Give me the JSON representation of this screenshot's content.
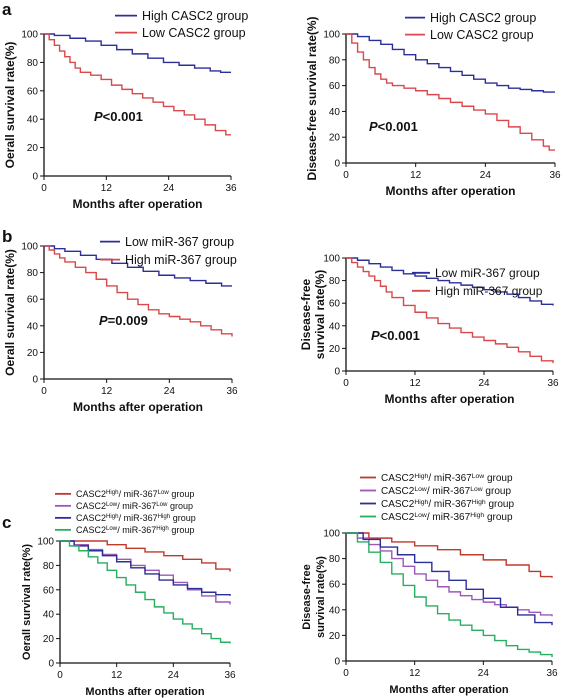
{
  "panels": [
    {
      "letter": "a",
      "show": true
    },
    {
      "letter": "",
      "show": false
    },
    {
      "letter": "b",
      "show": true
    },
    {
      "letter": "",
      "show": false
    },
    {
      "letter": "c",
      "show": true
    },
    {
      "letter": "",
      "show": false
    }
  ],
  "chart_data": [
    {
      "type": "line",
      "step": true,
      "title": "",
      "xlabel": "Months after operation",
      "ylabel": "Oerall survival rate(%)",
      "xlim": [
        0,
        36
      ],
      "ylim": [
        0,
        100
      ],
      "xticks": [
        0,
        12,
        24,
        36
      ],
      "yticks": [
        0,
        20,
        40,
        60,
        80,
        100
      ],
      "pvalue": {
        "label": "P",
        "text": "<0.001"
      },
      "legend": "top",
      "series": [
        {
          "name": "High CASC2 group",
          "color": "#2b2f9a",
          "x": [
            0,
            2,
            5,
            8,
            11,
            14,
            17,
            20,
            23,
            26,
            29,
            32,
            34,
            36
          ],
          "y": [
            100,
            99,
            97,
            95,
            92,
            89,
            86,
            83,
            80,
            78,
            76,
            74,
            73,
            73
          ]
        },
        {
          "name": "Low  CASC2 group",
          "color": "#d9484b",
          "x": [
            0,
            1,
            2,
            3,
            4,
            5,
            6,
            7,
            9,
            11,
            13,
            15,
            17,
            19,
            21,
            23,
            25,
            27,
            29,
            31,
            33,
            35,
            36
          ],
          "y": [
            100,
            96,
            92,
            88,
            84,
            80,
            76,
            73,
            71,
            68,
            64,
            61,
            58,
            55,
            52,
            49,
            46,
            43,
            40,
            36,
            32,
            29,
            29
          ]
        }
      ]
    },
    {
      "type": "line",
      "step": true,
      "title": "",
      "xlabel": "Months after operation",
      "ylabel": "Disease-free survival rate(%)",
      "xlim": [
        0,
        36
      ],
      "ylim": [
        0,
        100
      ],
      "xticks": [
        0,
        12,
        24,
        36
      ],
      "yticks": [
        0,
        20,
        40,
        60,
        80,
        100
      ],
      "pvalue": {
        "label": "P",
        "text": "<0.001"
      },
      "legend": "top",
      "series": [
        {
          "name": "High CASC2 group",
          "color": "#2b2f9a",
          "x": [
            0,
            2,
            4,
            6,
            8,
            10,
            12,
            14,
            16,
            18,
            20,
            22,
            24,
            26,
            28,
            30,
            32,
            34,
            36
          ],
          "y": [
            100,
            98,
            95,
            92,
            88,
            84,
            80,
            77,
            74,
            71,
            68,
            65,
            62,
            60,
            58,
            57,
            56,
            55,
            55
          ]
        },
        {
          "name": "Low  CASC2 group",
          "color": "#d9484b",
          "x": [
            0,
            1,
            2,
            3,
            4,
            5,
            6,
            7,
            8,
            10,
            12,
            14,
            16,
            18,
            20,
            22,
            24,
            26,
            28,
            30,
            32,
            34,
            35,
            36
          ],
          "y": [
            100,
            93,
            86,
            80,
            74,
            69,
            65,
            62,
            60,
            58,
            56,
            53,
            50,
            47,
            44,
            41,
            38,
            33,
            28,
            23,
            18,
            13,
            10,
            10
          ]
        }
      ]
    },
    {
      "type": "line",
      "step": true,
      "title": "",
      "xlabel": "Months after operation",
      "ylabel": "Oerall survival rate(%)",
      "xlim": [
        0,
        36
      ],
      "ylim": [
        0,
        100
      ],
      "xticks": [
        0,
        12,
        24,
        36
      ],
      "yticks": [
        0,
        20,
        40,
        60,
        80,
        100
      ],
      "pvalue": {
        "label": "P",
        "text": "=0.009"
      },
      "legend": "top",
      "series": [
        {
          "name": "Low miR-367  group",
          "color": "#2b2f9a",
          "x": [
            0,
            2,
            4,
            7,
            10,
            13,
            16,
            19,
            22,
            25,
            28,
            31,
            34,
            36
          ],
          "y": [
            100,
            98,
            96,
            93,
            90,
            87,
            84,
            81,
            78,
            76,
            74,
            72,
            70,
            70
          ]
        },
        {
          "name": "High miR-367 group",
          "color": "#d9484b",
          "x": [
            0,
            1,
            2,
            3,
            4,
            6,
            8,
            10,
            12,
            14,
            16,
            18,
            20,
            22,
            24,
            26,
            28,
            30,
            32,
            34,
            36
          ],
          "y": [
            100,
            97,
            94,
            91,
            88,
            84,
            80,
            75,
            70,
            65,
            60,
            56,
            52,
            49,
            47,
            45,
            43,
            40,
            37,
            34,
            32
          ]
        }
      ]
    },
    {
      "type": "line",
      "step": true,
      "title": "",
      "xlabel": "Months after operation",
      "ylabel": "Disease-free\nsurvival rate(%)",
      "xlim": [
        0,
        36
      ],
      "ylim": [
        0,
        100
      ],
      "xticks": [
        0,
        12,
        24,
        36
      ],
      "yticks": [
        0,
        20,
        40,
        60,
        80,
        100
      ],
      "pvalue": {
        "label": "P",
        "text": "<0.001"
      },
      "legend": "top-right",
      "series": [
        {
          "name": "Low miR-367 group",
          "color": "#2b2f9a",
          "x": [
            0,
            2,
            4,
            6,
            8,
            10,
            12,
            14,
            16,
            18,
            20,
            22,
            24,
            26,
            28,
            30,
            32,
            34,
            36
          ],
          "y": [
            100,
            98,
            95,
            92,
            89,
            86,
            84,
            82,
            80,
            78,
            76,
            74,
            72,
            70,
            68,
            65,
            62,
            59,
            58
          ]
        },
        {
          "name": "High miR-367  group",
          "color": "#d9484b",
          "x": [
            0,
            1,
            2,
            3,
            4,
            5,
            6,
            7,
            8,
            10,
            12,
            14,
            16,
            18,
            20,
            22,
            24,
            26,
            28,
            30,
            32,
            34,
            36
          ],
          "y": [
            100,
            96,
            92,
            88,
            84,
            80,
            75,
            70,
            65,
            58,
            52,
            47,
            42,
            38,
            34,
            30,
            27,
            24,
            21,
            17,
            13,
            9,
            7
          ]
        }
      ]
    },
    {
      "type": "line",
      "step": true,
      "title": "",
      "xlabel": "Months after operation",
      "ylabel": "Oerall survival rate(%)",
      "xlim": [
        0,
        36
      ],
      "ylim": [
        0,
        100
      ],
      "xticks": [
        0,
        12,
        24,
        36
      ],
      "yticks": [
        0,
        20,
        40,
        60,
        80,
        100
      ],
      "legend": "top-left",
      "series": [
        {
          "name_base": "CASC2",
          "name_sup1": "High",
          "name_mid": "/ miR-367",
          "name_sup2": "Low",
          "name_tail": " group",
          "color": "#c0392b",
          "x": [
            0,
            6,
            10,
            14,
            18,
            22,
            26,
            30,
            33,
            36
          ],
          "y": [
            100,
            100,
            97,
            94,
            91,
            88,
            85,
            82,
            77,
            75
          ]
        },
        {
          "name_base": "CASC2",
          "name_sup1": "Low",
          "name_mid": "/ miR-367",
          "name_sup2": "Low",
          "name_tail": " group",
          "color": "#9b59b6",
          "x": [
            0,
            3,
            6,
            9,
            12,
            15,
            18,
            21,
            24,
            27,
            30,
            33,
            36
          ],
          "y": [
            100,
            97,
            93,
            89,
            85,
            80,
            76,
            72,
            66,
            60,
            55,
            50,
            48
          ]
        },
        {
          "name_base": "CASC2",
          "name_sup1": "High",
          "name_mid": "/ miR-367",
          "name_sup2": "High",
          "name_tail": " group",
          "color": "#2b2f9a",
          "x": [
            0,
            3,
            6,
            9,
            12,
            15,
            18,
            21,
            24,
            27,
            30,
            33,
            36
          ],
          "y": [
            100,
            96,
            92,
            88,
            83,
            78,
            73,
            68,
            64,
            61,
            58,
            56,
            55
          ]
        },
        {
          "name_base": "CASC2",
          "name_sup1": "Low",
          "name_mid": "/ miR-367",
          "name_sup2": "High",
          "name_tail": " group",
          "color": "#27ae60",
          "x": [
            0,
            2,
            4,
            6,
            8,
            10,
            12,
            14,
            16,
            18,
            20,
            22,
            24,
            26,
            28,
            30,
            32,
            34,
            36
          ],
          "y": [
            100,
            96,
            92,
            87,
            82,
            76,
            70,
            64,
            58,
            52,
            46,
            41,
            36,
            32,
            28,
            24,
            20,
            17,
            16
          ]
        }
      ]
    },
    {
      "type": "line",
      "step": true,
      "title": "",
      "xlabel": "Months after operation",
      "ylabel": "Disease-free\nsurvival rate(%)",
      "xlim": [
        0,
        36
      ],
      "ylim": [
        0,
        100
      ],
      "xticks": [
        0,
        12,
        24,
        36
      ],
      "yticks": [
        0,
        20,
        40,
        60,
        80,
        100
      ],
      "legend": "top",
      "series": [
        {
          "name_base": "CASC2",
          "name_sup1": "High",
          "name_mid": "/ miR-367",
          "name_sup2": "Low",
          "name_tail": " group",
          "color": "#c0392b",
          "x": [
            0,
            4,
            8,
            12,
            16,
            20,
            24,
            28,
            32,
            34,
            36
          ],
          "y": [
            100,
            96,
            93,
            90,
            87,
            83,
            79,
            75,
            70,
            66,
            65
          ]
        },
        {
          "name_base": "CASC2",
          "name_sup1": "Low",
          "name_mid": "/ miR-367",
          "name_sup2": "Low",
          "name_tail": " group",
          "color": "#9b59b6",
          "x": [
            0,
            2,
            4,
            6,
            8,
            10,
            12,
            14,
            16,
            18,
            20,
            22,
            24,
            26,
            28,
            30,
            32,
            34,
            36
          ],
          "y": [
            100,
            96,
            91,
            86,
            80,
            74,
            68,
            63,
            58,
            54,
            51,
            48,
            46,
            44,
            42,
            40,
            38,
            36,
            35
          ]
        },
        {
          "name_base": "CASC2",
          "name_sup1": "High",
          "name_mid": "/ miR-367",
          "name_sup2": "High",
          "name_tail": " group",
          "color": "#2b2f9a",
          "x": [
            0,
            3,
            6,
            9,
            12,
            15,
            18,
            21,
            24,
            27,
            30,
            33,
            36
          ],
          "y": [
            100,
            95,
            89,
            83,
            77,
            70,
            63,
            56,
            49,
            42,
            36,
            30,
            28
          ]
        },
        {
          "name_base": "CASC2",
          "name_sup1": "Low",
          "name_mid": "/ miR-367",
          "name_sup2": "High",
          "name_tail": " group",
          "color": "#27ae60",
          "x": [
            0,
            2,
            4,
            6,
            8,
            10,
            12,
            14,
            16,
            18,
            20,
            22,
            24,
            26,
            28,
            30,
            32,
            34,
            36
          ],
          "y": [
            100,
            93,
            85,
            77,
            68,
            59,
            50,
            43,
            37,
            32,
            28,
            24,
            20,
            16,
            12,
            9,
            7,
            5,
            3
          ]
        }
      ]
    }
  ]
}
